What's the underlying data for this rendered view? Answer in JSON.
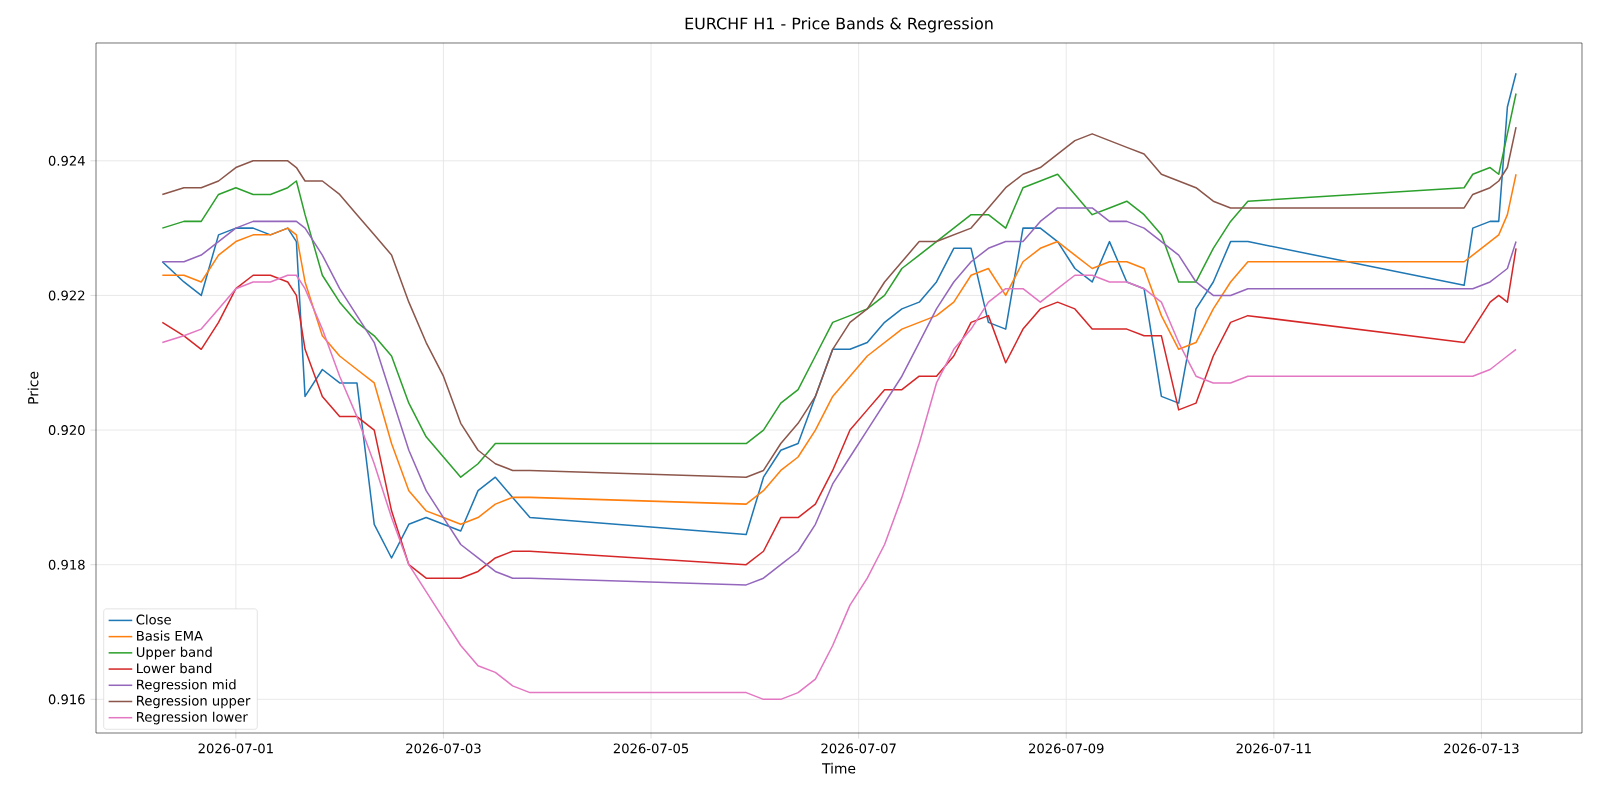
{
  "chart_data": {
    "type": "line",
    "title": "EURCHF H1 - Price Bands & Regression",
    "xlabel": "Time",
    "ylabel": "Price",
    "x": [
      "2026-06-30T07:00",
      "2026-06-30T12:00",
      "2026-06-30T16:00",
      "2026-06-30T20:00",
      "2026-07-01T00:00",
      "2026-07-01T04:00",
      "2026-07-01T08:00",
      "2026-07-01T12:00",
      "2026-07-01T14:00",
      "2026-07-01T16:00",
      "2026-07-01T20:00",
      "2026-07-02T00:00",
      "2026-07-02T04:00",
      "2026-07-02T08:00",
      "2026-07-02T12:00",
      "2026-07-02T16:00",
      "2026-07-02T20:00",
      "2026-07-03T00:00",
      "2026-07-03T04:00",
      "2026-07-03T08:00",
      "2026-07-03T12:00",
      "2026-07-03T16:00",
      "2026-07-03T20:00",
      "2026-07-05T22:00",
      "2026-07-06T02:00",
      "2026-07-06T06:00",
      "2026-07-06T10:00",
      "2026-07-06T14:00",
      "2026-07-06T18:00",
      "2026-07-06T22:00",
      "2026-07-07T02:00",
      "2026-07-07T06:00",
      "2026-07-07T10:00",
      "2026-07-07T14:00",
      "2026-07-07T18:00",
      "2026-07-07T22:00",
      "2026-07-08T02:00",
      "2026-07-08T06:00",
      "2026-07-08T10:00",
      "2026-07-08T14:00",
      "2026-07-08T18:00",
      "2026-07-08T22:00",
      "2026-07-09T02:00",
      "2026-07-09T06:00",
      "2026-07-09T10:00",
      "2026-07-09T14:00",
      "2026-07-09T18:00",
      "2026-07-09T22:00",
      "2026-07-10T02:00",
      "2026-07-10T06:00",
      "2026-07-10T10:00",
      "2026-07-10T14:00",
      "2026-07-10T18:00",
      "2026-07-12T20:00",
      "2026-07-12T22:00",
      "2026-07-13T02:00",
      "2026-07-13T04:00",
      "2026-07-13T06:00",
      "2026-07-13T08:00"
    ],
    "series": [
      {
        "name": "Close",
        "color": "#1f77b4",
        "values": [
          0.9225,
          0.9222,
          0.922,
          0.9229,
          0.923,
          0.923,
          0.9229,
          0.923,
          0.9228,
          0.9205,
          0.9209,
          0.9207,
          0.9207,
          0.9186,
          0.9181,
          0.9186,
          0.9187,
          0.9186,
          0.9185,
          0.9191,
          0.9193,
          0.919,
          0.9187,
          0.91845,
          0.9193,
          0.9197,
          0.9198,
          0.9205,
          0.9212,
          0.9212,
          0.9213,
          0.9216,
          0.9218,
          0.9219,
          0.9222,
          0.9227,
          0.9227,
          0.9216,
          0.9215,
          0.923,
          0.923,
          0.9228,
          0.9224,
          0.9222,
          0.9228,
          0.9222,
          0.9221,
          0.9205,
          0.9204,
          0.9218,
          0.9222,
          0.9228,
          0.9228,
          0.92215,
          0.923,
          0.9231,
          0.9231,
          0.9248,
          0.9253
        ]
      },
      {
        "name": "Basis EMA",
        "color": "#ff7f0e",
        "values": [
          0.9223,
          0.9223,
          0.9222,
          0.9226,
          0.9228,
          0.9229,
          0.9229,
          0.923,
          0.9229,
          0.9222,
          0.9214,
          0.9211,
          0.9209,
          0.9207,
          0.9198,
          0.9191,
          0.9188,
          0.9187,
          0.9186,
          0.9187,
          0.9189,
          0.919,
          0.919,
          0.9189,
          0.9191,
          0.9194,
          0.9196,
          0.92,
          0.9205,
          0.9208,
          0.9211,
          0.9213,
          0.9215,
          0.9216,
          0.9217,
          0.9219,
          0.9223,
          0.9224,
          0.922,
          0.9225,
          0.9227,
          0.9228,
          0.9226,
          0.9224,
          0.9225,
          0.9225,
          0.9224,
          0.9217,
          0.9212,
          0.9213,
          0.9218,
          0.9222,
          0.9225,
          0.9225,
          0.9226,
          0.9228,
          0.9229,
          0.9232,
          0.9238
        ]
      },
      {
        "name": "Upper band",
        "color": "#2ca02c",
        "values": [
          0.923,
          0.9231,
          0.9231,
          0.9235,
          0.9236,
          0.9235,
          0.9235,
          0.9236,
          0.9237,
          0.9232,
          0.9223,
          0.9219,
          0.9216,
          0.9214,
          0.9211,
          0.9204,
          0.9199,
          0.9196,
          0.9193,
          0.9195,
          0.9198,
          0.9198,
          0.9198,
          0.9198,
          0.92,
          0.9204,
          0.9206,
          0.9211,
          0.9216,
          0.9217,
          0.9218,
          0.922,
          0.9224,
          0.9226,
          0.9228,
          0.923,
          0.9232,
          0.9232,
          0.923,
          0.9236,
          0.9237,
          0.9238,
          0.9235,
          0.9232,
          0.9233,
          0.9234,
          0.9232,
          0.9229,
          0.9222,
          0.9222,
          0.9227,
          0.9231,
          0.9234,
          0.9236,
          0.9238,
          0.9239,
          0.9238,
          0.9244,
          0.925
        ]
      },
      {
        "name": "Lower band",
        "color": "#d62728",
        "values": [
          0.9216,
          0.9214,
          0.9212,
          0.9216,
          0.9221,
          0.9223,
          0.9223,
          0.9222,
          0.922,
          0.9212,
          0.9205,
          0.9202,
          0.9202,
          0.92,
          0.9188,
          0.918,
          0.9178,
          0.9178,
          0.9178,
          0.9179,
          0.9181,
          0.9182,
          0.9182,
          0.918,
          0.9182,
          0.9187,
          0.9187,
          0.9189,
          0.9194,
          0.92,
          0.9203,
          0.9206,
          0.9206,
          0.9208,
          0.9208,
          0.9211,
          0.9216,
          0.9217,
          0.921,
          0.9215,
          0.9218,
          0.9219,
          0.9218,
          0.9215,
          0.9215,
          0.9215,
          0.9214,
          0.9214,
          0.9203,
          0.9204,
          0.9211,
          0.9216,
          0.9217,
          0.9213,
          0.9215,
          0.9219,
          0.922,
          0.9219,
          0.9227
        ]
      },
      {
        "name": "Regression mid",
        "color": "#9467bd",
        "values": [
          0.9225,
          0.9225,
          0.9226,
          0.9228,
          0.923,
          0.9231,
          0.9231,
          0.9231,
          0.9231,
          0.923,
          0.9226,
          0.9221,
          0.9217,
          0.9213,
          0.9205,
          0.9197,
          0.9191,
          0.9187,
          0.9183,
          0.9181,
          0.9179,
          0.9178,
          0.9178,
          0.9177,
          0.9178,
          0.918,
          0.9182,
          0.9186,
          0.9192,
          0.9196,
          0.92,
          0.9204,
          0.9208,
          0.9213,
          0.9218,
          0.9222,
          0.9225,
          0.9227,
          0.9228,
          0.9228,
          0.9231,
          0.9233,
          0.9233,
          0.9233,
          0.9231,
          0.9231,
          0.923,
          0.9228,
          0.9226,
          0.9222,
          0.922,
          0.922,
          0.9221,
          0.9221,
          0.9221,
          0.9222,
          0.9223,
          0.9224,
          0.9228
        ]
      },
      {
        "name": "Regression upper",
        "color": "#8c564b",
        "values": [
          0.9235,
          0.9236,
          0.9236,
          0.9237,
          0.9239,
          0.924,
          0.924,
          0.924,
          0.9239,
          0.9237,
          0.9237,
          0.9235,
          0.9232,
          0.9229,
          0.9226,
          0.9219,
          0.9213,
          0.9208,
          0.9201,
          0.9197,
          0.9195,
          0.9194,
          0.9194,
          0.9193,
          0.9194,
          0.9198,
          0.9201,
          0.9205,
          0.9212,
          0.9216,
          0.9218,
          0.9222,
          0.9225,
          0.9228,
          0.9228,
          0.9229,
          0.923,
          0.9233,
          0.9236,
          0.9238,
          0.9239,
          0.9241,
          0.9243,
          0.9244,
          0.9243,
          0.9242,
          0.9241,
          0.9238,
          0.9237,
          0.9236,
          0.9234,
          0.9233,
          0.9233,
          0.9233,
          0.9235,
          0.9236,
          0.9237,
          0.9239,
          0.9245
        ]
      },
      {
        "name": "Regression lower",
        "color": "#e377c2",
        "values": [
          0.9213,
          0.9214,
          0.9215,
          0.9218,
          0.9221,
          0.9222,
          0.9222,
          0.9223,
          0.9223,
          0.9221,
          0.9215,
          0.9208,
          0.9202,
          0.9195,
          0.9187,
          0.918,
          0.9176,
          0.9172,
          0.9168,
          0.9165,
          0.9164,
          0.9162,
          0.9161,
          0.9161,
          0.916,
          0.916,
          0.9161,
          0.9163,
          0.9168,
          0.9174,
          0.9178,
          0.9183,
          0.919,
          0.9198,
          0.9207,
          0.9212,
          0.9215,
          0.9219,
          0.9221,
          0.9221,
          0.9219,
          0.9221,
          0.9223,
          0.9223,
          0.9222,
          0.9222,
          0.9221,
          0.9219,
          0.9213,
          0.9208,
          0.9207,
          0.9207,
          0.9208,
          0.9208,
          0.9208,
          0.9209,
          0.921,
          0.9211,
          0.9212
        ]
      }
    ],
    "xlim": [
      "2026-06-29T15:40",
      "2026-07-13T23:15"
    ],
    "xticks": [
      "2026-07-01",
      "2026-07-03",
      "2026-07-05",
      "2026-07-07",
      "2026-07-09",
      "2026-07-11",
      "2026-07-13"
    ],
    "ylim": [
      0.9155,
      0.92575
    ],
    "yticks": [
      0.916,
      0.918,
      {
        "value": 0.92,
        "label": "0.920"
      },
      0.922,
      0.924
    ],
    "grid": true,
    "legend": "bottom left",
    "marker": "none",
    "line_style": "solid"
  }
}
